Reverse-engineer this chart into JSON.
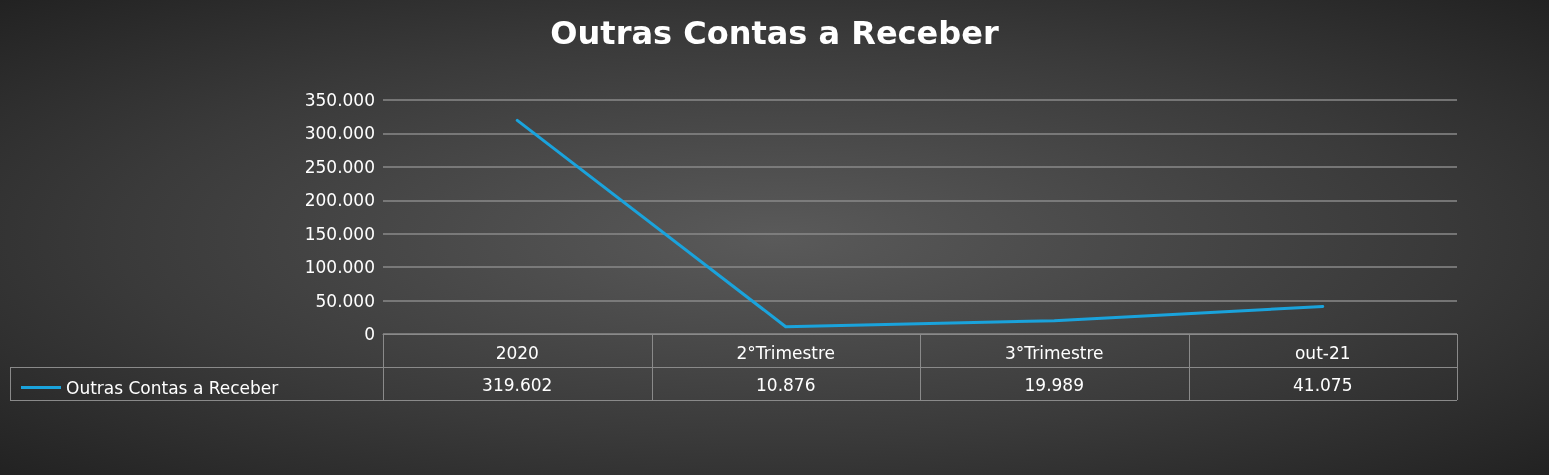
{
  "chart_data": {
    "type": "line",
    "title": "Outras Contas a Receber",
    "categories": [
      "2020",
      "2°Trimestre",
      "3°Trimestre",
      "out-21"
    ],
    "series": [
      {
        "name": "Outras Contas a Receber",
        "color": "#1aa3dc",
        "values": [
          319602,
          10876,
          19989,
          41075
        ],
        "value_labels": [
          "319.602",
          "10.876",
          "19.989",
          "41.075"
        ]
      }
    ],
    "ylim": [
      0,
      350000
    ],
    "yticks": [
      0,
      {
        "value": 50000,
        "label": "50.000"
      },
      {
        "value": 100000,
        "label": "100.000"
      },
      {
        "value": 150000,
        "label": "150.000"
      },
      {
        "value": 200000,
        "label": "200.000"
      },
      {
        "value": 250000,
        "label": "250.000"
      },
      {
        "value": 300000,
        "label": "300.000"
      },
      {
        "value": 350000,
        "label": "350.000"
      }
    ],
    "grid": "y",
    "legend": "bottom left",
    "marker": "none",
    "line_style": "solid"
  }
}
